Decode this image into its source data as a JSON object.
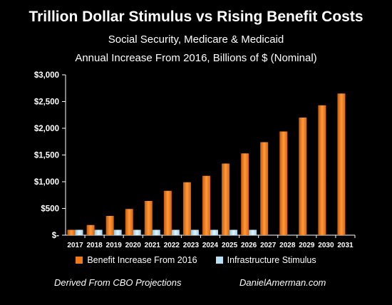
{
  "title": "Trillion Dollar Stimulus vs Rising Benefit Costs",
  "subtitle1": "Social Security, Medicare & Medicaid",
  "subtitle2": "Annual Increase From 2016, Billions of $ (Nominal)",
  "footer_left": "Derived From CBO Projections",
  "footer_right": "DanielAmerman.com",
  "colors": {
    "benefit": "#f07a1a",
    "stimulus": "#b9e1f5",
    "background": "#000000",
    "text": "#ffffff"
  },
  "chart_data": {
    "type": "bar",
    "categories": [
      "2017",
      "2018",
      "2019",
      "2020",
      "2021",
      "2022",
      "2023",
      "2024",
      "2025",
      "2026",
      "2027",
      "2028",
      "2029",
      "2030",
      "2031"
    ],
    "series": [
      {
        "name": "Benefit Increase From 2016",
        "values": [
          100,
          190,
          360,
          490,
          640,
          830,
          990,
          1110,
          1340,
          1530,
          1740,
          1940,
          2200,
          2430,
          2650
        ]
      },
      {
        "name": "Infrastructure Stimulus",
        "values": [
          100,
          100,
          100,
          100,
          100,
          100,
          100,
          100,
          100,
          100,
          null,
          null,
          null,
          null,
          null
        ]
      }
    ],
    "ytick_labels": [
      "$-",
      "$500",
      "$1,000",
      "$1,500",
      "$2,000",
      "$2,500",
      "$3,000"
    ],
    "ytick_values": [
      0,
      500,
      1000,
      1500,
      2000,
      2500,
      3000
    ],
    "ylim": [
      0,
      3000
    ],
    "xlabel": "",
    "ylabel": "",
    "grid": false,
    "legend": "bottom"
  }
}
